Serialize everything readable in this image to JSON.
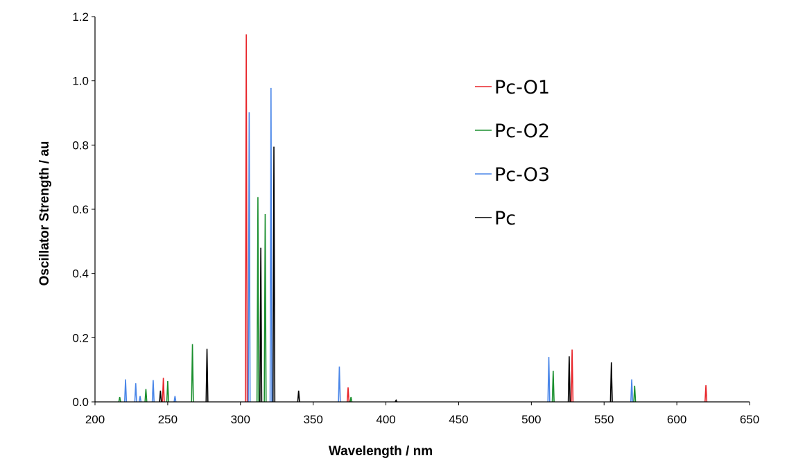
{
  "chart_data": {
    "type": "line",
    "xlabel": "Wavelength / nm",
    "ylabel": "Oscillator Strength / au",
    "xlim": [
      200,
      650
    ],
    "ylim": [
      0,
      1.2
    ],
    "xticks": [
      "200",
      "250",
      "300",
      "350",
      "400",
      "450",
      "500",
      "550",
      "600",
      "650"
    ],
    "yticks": [
      "0.0",
      "0.2",
      "0.4",
      "0.6",
      "0.8",
      "1.0",
      "1.2"
    ],
    "legend_position": "top-right",
    "grid": false,
    "series": [
      {
        "name": "Pc-O1",
        "color": "#e8252a",
        "sticks": [
          [
            247,
            0.075
          ],
          [
            304,
            1.145
          ],
          [
            374,
            0.045
          ],
          [
            528,
            0.163
          ],
          [
            620,
            0.052
          ]
        ]
      },
      {
        "name": "Pc-O2",
        "color": "#1a8f2e",
        "sticks": [
          [
            217,
            0.015
          ],
          [
            235,
            0.04
          ],
          [
            250,
            0.065
          ],
          [
            267,
            0.18
          ],
          [
            312,
            0.638
          ],
          [
            317,
            0.585
          ],
          [
            376,
            0.015
          ],
          [
            515,
            0.097
          ],
          [
            571,
            0.05
          ]
        ]
      },
      {
        "name": "Pc-O3",
        "color": "#4a86e8",
        "sticks": [
          [
            221,
            0.07
          ],
          [
            228,
            0.058
          ],
          [
            231,
            0.018
          ],
          [
            240,
            0.068
          ],
          [
            255,
            0.018
          ],
          [
            306,
            0.902
          ],
          [
            321,
            0.978
          ],
          [
            368,
            0.11
          ],
          [
            512,
            0.14
          ],
          [
            569,
            0.07
          ]
        ]
      },
      {
        "name": "Pc",
        "color": "#000000",
        "sticks": [
          [
            245,
            0.035
          ],
          [
            277,
            0.165
          ],
          [
            314,
            0.48
          ],
          [
            323,
            0.795
          ],
          [
            340,
            0.035
          ],
          [
            407,
            0.005
          ],
          [
            526,
            0.142
          ],
          [
            555,
            0.123
          ]
        ]
      }
    ]
  }
}
